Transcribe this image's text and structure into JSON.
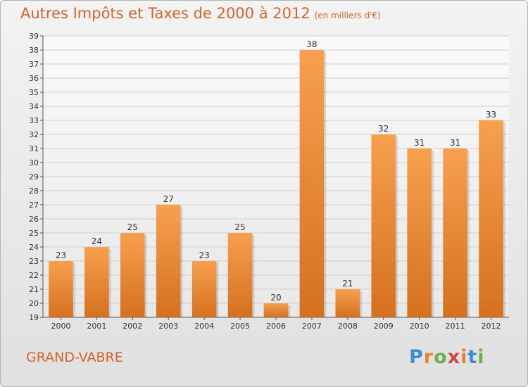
{
  "header": {
    "title": "Autres Impôts et Taxes de 2000 à 2012",
    "unit": "(en milliers d'€)"
  },
  "footer": {
    "commune": "GRAND-VABRE",
    "logo_text": "Proxiti"
  },
  "colors": {
    "accent": "#d4622c",
    "bar_light": "#f7a04e",
    "bar_dark": "#d4711f"
  },
  "chart_data": {
    "type": "bar",
    "title": "Autres Impôts et Taxes de 2000 à 2012",
    "subtitle": "(en milliers d'€)",
    "xlabel": "",
    "ylabel": "",
    "categories": [
      "2000",
      "2001",
      "2002",
      "2003",
      "2004",
      "2005",
      "2006",
      "2007",
      "2008",
      "2009",
      "2010",
      "2011",
      "2012"
    ],
    "values": [
      23,
      24,
      25,
      27,
      23,
      25,
      20,
      38,
      21,
      32,
      31,
      31,
      33
    ],
    "ylim": [
      19,
      39
    ],
    "yticks": [
      19,
      20,
      21,
      22,
      23,
      24,
      25,
      26,
      27,
      28,
      29,
      30,
      31,
      32,
      33,
      34,
      35,
      36,
      37,
      38,
      39
    ],
    "grid": true,
    "data_labels": true,
    "legend": "none"
  }
}
